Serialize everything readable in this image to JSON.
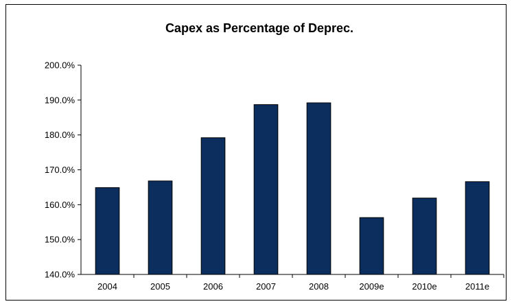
{
  "chart_data": {
    "type": "bar",
    "title": "Capex as Percentage of Deprec.",
    "xlabel": "",
    "ylabel": "",
    "categories": [
      "2004",
      "2005",
      "2006",
      "2007",
      "2008",
      "2009e",
      "2010e",
      "2011e"
    ],
    "values": [
      164.9,
      166.8,
      179.2,
      188.7,
      189.2,
      156.3,
      161.9,
      166.6
    ],
    "ylim": [
      140,
      200
    ],
    "yticks": [
      140,
      150,
      160,
      170,
      180,
      190,
      200
    ],
    "ytick_labels": [
      "140.0%",
      "150.0%",
      "160.0%",
      "170.0%",
      "180.0%",
      "190.0%",
      "200.0%"
    ],
    "grid": false,
    "legend": "none",
    "colors": {
      "bar_fill": "#0b2e5f",
      "bar_stroke": "#000000",
      "axis": "#000000"
    }
  }
}
